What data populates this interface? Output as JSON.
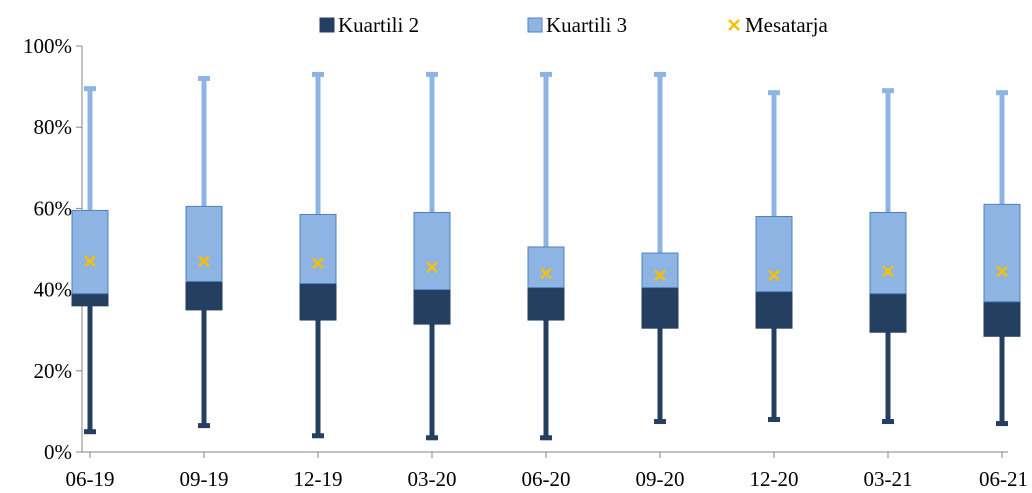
{
  "chart_data": {
    "type": "box",
    "categories": [
      "06-19",
      "09-19",
      "12-19",
      "03-20",
      "06-20",
      "09-20",
      "12-20",
      "03-21",
      "06-21"
    ],
    "series": [
      {
        "name": "Kuartili 2",
        "color": "#243F60",
        "q1": [
          36.0,
          35.0,
          32.5,
          31.5,
          32.5,
          30.5,
          30.5,
          29.5,
          28.5
        ],
        "median": [
          39.0,
          42.0,
          41.5,
          40.0,
          40.5,
          40.5,
          39.5,
          39.0,
          37.0
        ]
      },
      {
        "name": "Kuartili 3",
        "color": "#8EB4E3",
        "q3": [
          59.5,
          60.5,
          58.5,
          59.0,
          50.5,
          49.0,
          58.0,
          59.0,
          61.0
        ]
      },
      {
        "name": "Mesatarja",
        "color": "#F5C000",
        "values": [
          47.0,
          47.0,
          46.5,
          45.5,
          44.0,
          43.5,
          43.5,
          44.5,
          44.5
        ]
      }
    ],
    "whisker_min": [
      5.0,
      6.5,
      4.0,
      3.5,
      3.5,
      7.5,
      8.0,
      7.5,
      7.0
    ],
    "whisker_max": [
      89.5,
      92.0,
      93.0,
      93.0,
      93.0,
      93.0,
      88.5,
      89.0,
      88.5
    ],
    "y_ticks": [
      "0%",
      "20%",
      "40%",
      "60%",
      "80%",
      "100%"
    ],
    "ylim": [
      0,
      100
    ],
    "grid": false,
    "legend_position": "top"
  }
}
